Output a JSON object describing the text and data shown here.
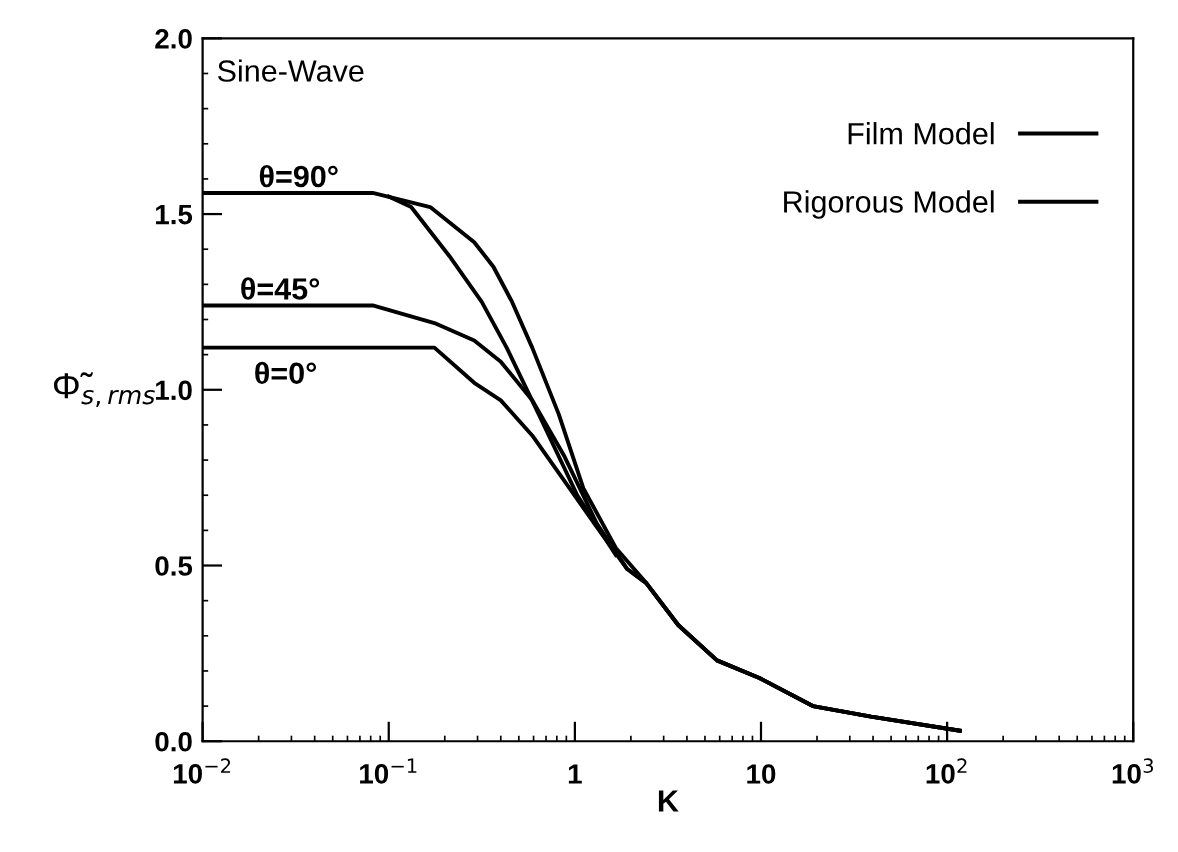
{
  "chart_data": {
    "type": "line",
    "xlabel": "K",
    "ylabel": "Φ̃$_{s,rms}$",
    "log": "x",
    "xlim": [
      0.01,
      1000
    ],
    "ylim": [
      0,
      2.0
    ],
    "xticks": [
      {
        "value": 0.01,
        "label": "10$^{−2}$"
      },
      {
        "value": 0.1,
        "label": "10$^{−1}$"
      },
      1,
      10,
      {
        "value": 100,
        "label": "10$^{2}$"
      },
      {
        "value": 1000,
        "label": "10$^{3}$"
      }
    ],
    "yticks": [
      {
        "value": 0,
        "label": "0.0"
      },
      0.5,
      {
        "value": 1,
        "label": "1.0"
      },
      1.5,
      {
        "value": 2,
        "label": "2.0"
      }
    ],
    "grid": false,
    "legend": "top right",
    "line_style": "solid",
    "marker": "none",
    "series": [
      {
        "name": "Film Model",
        "color": "#000000",
        "x": [
          0.01,
          0.082,
          0.167,
          0.288,
          0.365,
          0.46,
          0.59,
          0.82,
          1.11,
          1.66,
          2.42,
          3.6,
          5.8,
          9.8,
          19,
          39,
          117
        ],
        "values": [
          1.56,
          1.56,
          1.52,
          1.42,
          1.35,
          1.25,
          1.12,
          0.93,
          0.72,
          0.55,
          0.45,
          0.33,
          0.23,
          0.18,
          0.1,
          0.07,
          0.03
        ]
      },
      {
        "name": "Rigorous Model",
        "color": "#000000",
        "x": [
          0.1,
          0.132,
          0.212,
          0.316,
          0.43,
          0.64,
          1.03,
          1.66
        ],
        "values": [
          1.55,
          1.52,
          1.38,
          1.25,
          1.12,
          0.93,
          0.7,
          0.53
        ]
      },
      {
        "color": "#000000",
        "x": [
          0.01,
          0.082,
          0.176,
          0.288,
          0.4,
          0.59,
          0.88,
          1.31,
          1.91,
          2.42,
          3.6,
          5.8,
          9.8,
          19,
          39,
          117
        ],
        "values": [
          1.24,
          1.24,
          1.19,
          1.14,
          1.08,
          0.97,
          0.81,
          0.62,
          0.49,
          0.45,
          0.33,
          0.23,
          0.18,
          0.1,
          0.07,
          0.03
        ]
      },
      {
        "color": "#000000",
        "x": [
          0.01,
          0.176,
          0.288,
          0.4,
          0.59,
          0.88,
          1.31,
          1.91,
          2.42,
          3.6,
          5.8,
          9.8,
          19,
          39,
          117
        ],
        "values": [
          1.12,
          1.12,
          1.02,
          0.97,
          0.87,
          0.74,
          0.61,
          0.49,
          0.45,
          0.33,
          0.23,
          0.18,
          0.1,
          0.07,
          0.03
        ]
      }
    ],
    "annotations": [
      "Sine-Wave",
      "θ=90°",
      "θ=45°",
      "θ=0°"
    ]
  }
}
